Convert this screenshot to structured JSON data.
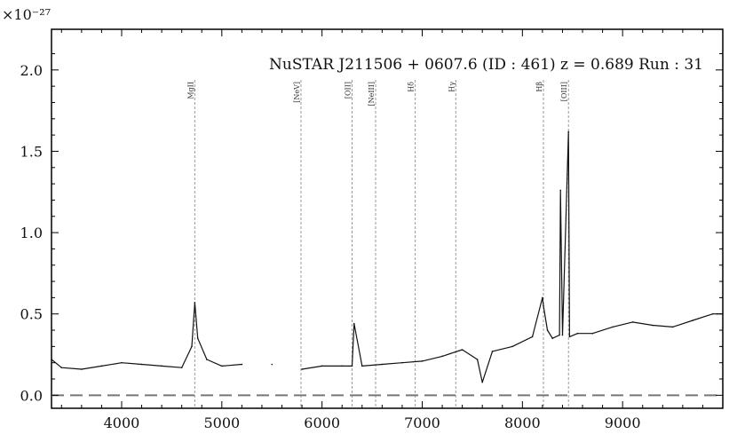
{
  "chart_data": {
    "type": "line",
    "title": "NuSTAR J211506 + 0607.6 (ID : 461)   z = 0.689   Run : 31",
    "xlabel": "",
    "ylabel": "",
    "scale_label": "×10⁻²⁷",
    "xlim": [
      3300,
      10000
    ],
    "ylim": [
      -0.08,
      2.25
    ],
    "xticks": [
      4000,
      5000,
      6000,
      7000,
      8000,
      9000
    ],
    "xtick_labels": [
      "4000",
      "5000",
      "6000",
      "7000",
      "8000",
      "9000"
    ],
    "yticks": [
      0.0,
      0.5,
      1.0,
      1.5,
      2.0
    ],
    "ytick_labels": [
      "0.0",
      "0.5",
      "1.0",
      "1.5",
      "2.0"
    ],
    "grid": false,
    "zero_line": 0.0,
    "emission_lines": [
      {
        "label": "MgII",
        "x": 4730
      },
      {
        "label": "[NeV]",
        "x": 5790
      },
      {
        "label": "[OII]",
        "x": 6300
      },
      {
        "label": "[NeIII]",
        "x": 6535
      },
      {
        "label": "Hδ",
        "x": 6930
      },
      {
        "label": "Hγ",
        "x": 7335
      },
      {
        "label": "Hβ",
        "x": 8210
      },
      {
        "label": "[OIII]",
        "x": 8460
      }
    ],
    "series": [
      {
        "x": [
          3300,
          3400,
          3600,
          3800,
          4000,
          4200,
          4400,
          4600,
          4700,
          4730,
          4760,
          4850,
          5000,
          5200,
          5500,
          5800,
          6000,
          6200,
          6300,
          6320,
          6400,
          6600,
          6800,
          7000,
          7200,
          7400,
          7550,
          7600,
          7700,
          7900,
          8100,
          8200,
          8210,
          8250,
          8300,
          8370,
          8380,
          8400,
          8460,
          8470,
          8550,
          8700,
          8900,
          9100,
          9300,
          9500,
          9700,
          9900,
          10000
        ],
        "y": [
          0.22,
          0.17,
          0.16,
          0.18,
          0.2,
          0.19,
          0.18,
          0.17,
          0.3,
          0.57,
          0.35,
          0.22,
          0.18,
          0.19,
          0.19,
          0.16,
          0.18,
          0.18,
          0.18,
          0.44,
          0.18,
          0.19,
          0.2,
          0.21,
          0.24,
          0.28,
          0.22,
          0.08,
          0.27,
          0.3,
          0.36,
          0.6,
          0.55,
          0.4,
          0.35,
          0.37,
          1.26,
          0.37,
          1.62,
          0.36,
          0.38,
          0.38,
          0.42,
          0.45,
          0.43,
          0.42,
          0.46,
          0.5,
          0.5
        ]
      }
    ]
  }
}
